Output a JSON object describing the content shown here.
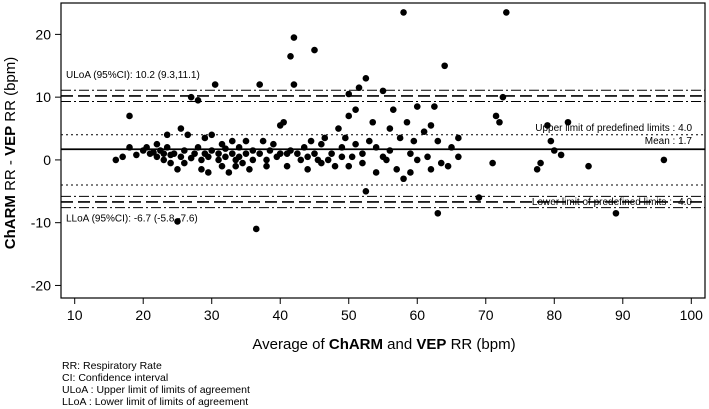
{
  "chart_data": {
    "type": "scatter",
    "xlim": [
      8,
      102
    ],
    "ylim": [
      -22,
      25
    ],
    "x_ticks": [
      10,
      20,
      30,
      40,
      50,
      60,
      70,
      80,
      90,
      100
    ],
    "y_ticks": [
      -20,
      -10,
      0,
      10,
      20
    ],
    "grid": false,
    "xlabel": {
      "pre": "Average of ",
      "a": "ChARM",
      "mid": " and ",
      "b": "VEP",
      "post": " RR (bpm)"
    },
    "ylabel": {
      "a": "ChARM",
      "mid": " RR  -  ",
      "b": "VEP",
      "post": " RR (bpm)"
    },
    "lines": {
      "mean": 1.7,
      "uloa": 10.2,
      "uloa_ci": [
        9.3,
        11.1
      ],
      "lloa": -6.7,
      "lloa_ci": [
        -5.8,
        -7.6
      ],
      "upper_predefined": 4.0,
      "lower_predefined": -4.0
    },
    "annotations": {
      "uloa": "ULoA (95%CI):  10.2 (9.3,11.1)",
      "lloa": "LLoA (95%CI): -6.7 (-5.8,-7.6)",
      "upper_predefined": "Upper limit of predefined limits :  4.0",
      "mean": "Mean : 1.7",
      "lower_predefined": "Lower limit of predefined limits :  -4.0"
    },
    "points": [
      [
        16,
        0
      ],
      [
        17,
        0.5
      ],
      [
        18,
        2
      ],
      [
        18,
        7
      ],
      [
        19,
        0.8
      ],
      [
        20,
        1.5
      ],
      [
        20.5,
        2
      ],
      [
        21,
        1
      ],
      [
        21.5,
        1.2
      ],
      [
        22,
        0.5
      ],
      [
        22,
        2.5
      ],
      [
        22.5,
        1.5
      ],
      [
        23,
        0
      ],
      [
        23,
        1
      ],
      [
        23.5,
        4
      ],
      [
        23.5,
        2
      ],
      [
        24,
        0.8
      ],
      [
        24,
        -0.5
      ],
      [
        24.5,
        1
      ],
      [
        25,
        -1.5
      ],
      [
        25,
        -9.8
      ],
      [
        25.5,
        0.5
      ],
      [
        25.5,
        5
      ],
      [
        26,
        1.5
      ],
      [
        26,
        -0.5
      ],
      [
        26.5,
        4
      ],
      [
        27,
        0.3
      ],
      [
        27,
        10
      ],
      [
        27.5,
        1
      ],
      [
        28,
        2
      ],
      [
        28,
        9.5
      ],
      [
        28.5,
        0
      ],
      [
        28.5,
        -1.5
      ],
      [
        29,
        1
      ],
      [
        29,
        3.5
      ],
      [
        29.5,
        0.5
      ],
      [
        29.5,
        -2
      ],
      [
        30,
        1.5
      ],
      [
        30,
        4
      ],
      [
        30.5,
        12
      ],
      [
        31,
        0
      ],
      [
        31,
        1
      ],
      [
        31.5,
        -1
      ],
      [
        31.5,
        2.5
      ],
      [
        32,
        0.5
      ],
      [
        32,
        1.8
      ],
      [
        32.5,
        -2
      ],
      [
        33,
        1
      ],
      [
        33,
        3
      ],
      [
        33.5,
        0
      ],
      [
        33.5,
        -1
      ],
      [
        34,
        0.5
      ],
      [
        34,
        2
      ],
      [
        34.5,
        -0.5
      ],
      [
        35,
        1
      ],
      [
        35,
        3
      ],
      [
        35.5,
        -1.5
      ],
      [
        36,
        0
      ],
      [
        36,
        1.5
      ],
      [
        36.5,
        -11
      ],
      [
        37,
        12
      ],
      [
        37,
        1
      ],
      [
        37.5,
        3
      ],
      [
        38,
        0
      ],
      [
        38,
        -1
      ],
      [
        38.5,
        1.5
      ],
      [
        39,
        2.5
      ],
      [
        39.5,
        0.5
      ],
      [
        40,
        5.5
      ],
      [
        40,
        1
      ],
      [
        40.5,
        6
      ],
      [
        41,
        -1
      ],
      [
        41,
        1
      ],
      [
        41.5,
        16.5
      ],
      [
        41.5,
        1.5
      ],
      [
        42,
        19.5
      ],
      [
        42,
        12
      ],
      [
        42.5,
        1
      ],
      [
        43,
        0
      ],
      [
        43.5,
        2
      ],
      [
        44,
        -1.5
      ],
      [
        44,
        0.5
      ],
      [
        44.5,
        3
      ],
      [
        45,
        17.5
      ],
      [
        45,
        1
      ],
      [
        45.5,
        0
      ],
      [
        46,
        2.5
      ],
      [
        46,
        -0.5
      ],
      [
        46.5,
        3.5
      ],
      [
        47,
        0
      ],
      [
        47.5,
        1
      ],
      [
        48,
        -1
      ],
      [
        48.5,
        5
      ],
      [
        49,
        0.5
      ],
      [
        49,
        2
      ],
      [
        49.5,
        3.5
      ],
      [
        50,
        7
      ],
      [
        50,
        10.5
      ],
      [
        50,
        -1
      ],
      [
        50.5,
        0.5
      ],
      [
        51,
        8
      ],
      [
        51,
        2.5
      ],
      [
        51.5,
        11.5
      ],
      [
        52,
        1
      ],
      [
        52,
        -0.5
      ],
      [
        52.5,
        13
      ],
      [
        52.5,
        -5
      ],
      [
        53,
        3
      ],
      [
        53.5,
        6
      ],
      [
        54,
        -2
      ],
      [
        54,
        2
      ],
      [
        55,
        11
      ],
      [
        55,
        0.5
      ],
      [
        55.5,
        0
      ],
      [
        56,
        5
      ],
      [
        56,
        1.5
      ],
      [
        56.5,
        8
      ],
      [
        57,
        -1.5
      ],
      [
        57.5,
        3.5
      ],
      [
        58,
        -3
      ],
      [
        58,
        23.5
      ],
      [
        58.5,
        6
      ],
      [
        59,
        1
      ],
      [
        59,
        -2
      ],
      [
        59.5,
        3
      ],
      [
        60,
        8.5
      ],
      [
        60,
        0
      ],
      [
        61,
        4.5
      ],
      [
        61.5,
        0.5
      ],
      [
        62,
        -1.5
      ],
      [
        62,
        5.5
      ],
      [
        62.5,
        8.5
      ],
      [
        63,
        -8.5
      ],
      [
        63,
        3
      ],
      [
        63.5,
        -0.5
      ],
      [
        64,
        15
      ],
      [
        64.5,
        -1
      ],
      [
        65,
        2
      ],
      [
        66,
        3.5
      ],
      [
        66,
        0.5
      ],
      [
        69,
        -6
      ],
      [
        71,
        -0.5
      ],
      [
        71.5,
        7
      ],
      [
        72,
        6
      ],
      [
        72.5,
        10
      ],
      [
        73,
        23.5
      ],
      [
        77.5,
        -1.5
      ],
      [
        78,
        -0.5
      ],
      [
        79,
        5.5
      ],
      [
        79.5,
        3
      ],
      [
        80,
        1.5
      ],
      [
        81,
        0.8
      ],
      [
        82,
        6
      ],
      [
        85,
        -1
      ],
      [
        89,
        -8.5
      ],
      [
        96,
        0
      ]
    ]
  },
  "footnotes": [
    "RR: Respiratory Rate",
    "CI: Confidence interval",
    "ULoA : Upper limit of limits of agreement",
    "LLoA : Lower limit of limits of agreement"
  ]
}
